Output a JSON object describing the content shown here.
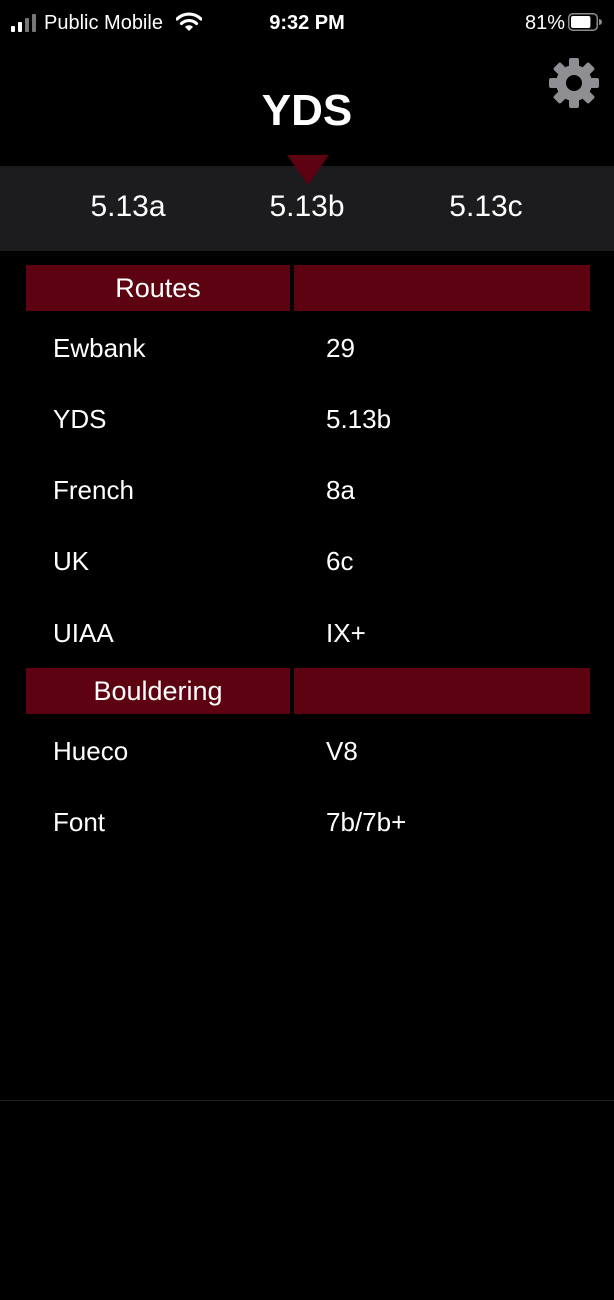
{
  "status_bar": {
    "carrier": "Public Mobile",
    "time": "9:32 PM",
    "battery_percent": "81%",
    "battery_level": 0.81
  },
  "header": {
    "title": "YDS",
    "settings_icon": "gear-icon"
  },
  "picker": {
    "items": [
      "5.13a",
      "5.13b",
      "5.13c"
    ],
    "selected": "5.13b"
  },
  "sections": {
    "routes": {
      "label": "Routes",
      "rows": [
        {
          "name": "Ewbank",
          "value": "29"
        },
        {
          "name": "YDS",
          "value": "5.13b"
        },
        {
          "name": "French",
          "value": "8a"
        },
        {
          "name": "UK",
          "value": "6c"
        },
        {
          "name": "UIAA",
          "value": "IX+"
        }
      ]
    },
    "bouldering": {
      "label": "Bouldering",
      "rows": [
        {
          "name": "Hueco",
          "value": "V8"
        },
        {
          "name": "Font",
          "value": "7b/7b+"
        }
      ]
    }
  },
  "colors": {
    "accent": "#5c0210",
    "background": "#000000",
    "picker_bg": "#1c1c1e",
    "text": "#ffffff"
  }
}
